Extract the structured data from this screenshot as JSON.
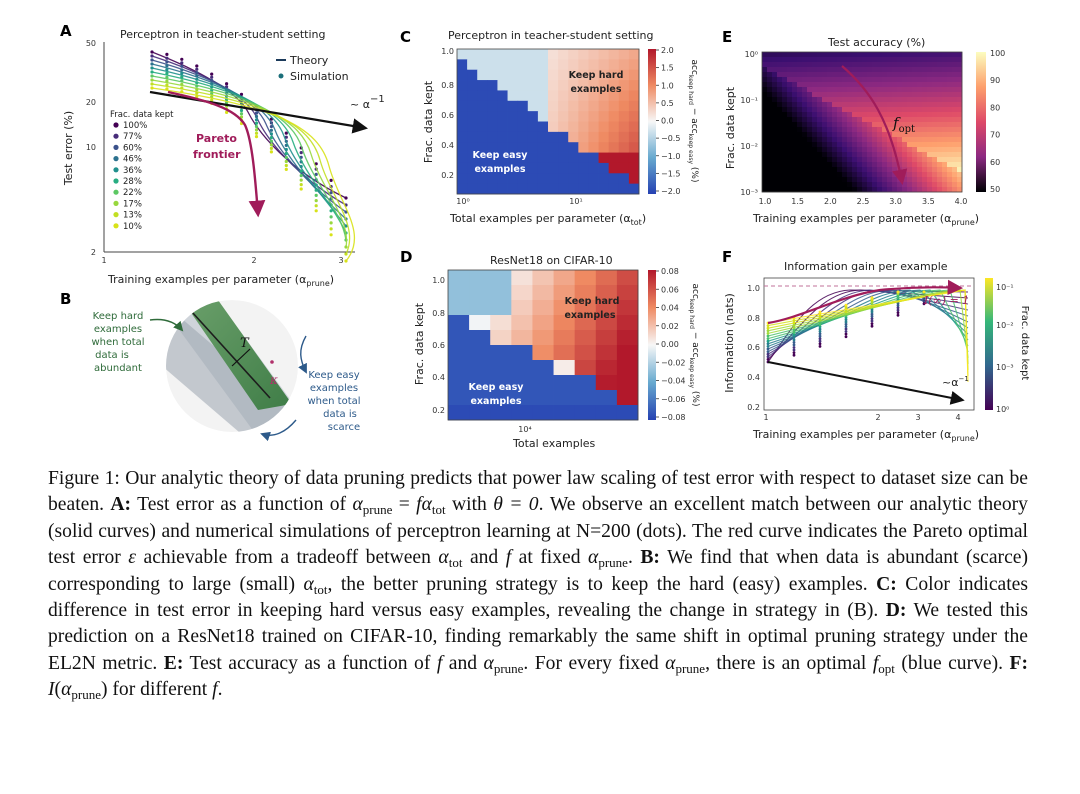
{
  "panels": {
    "A": {
      "letter": "A",
      "title": "Perceptron in teacher-student setting",
      "xlabel": "Training examples per parameter (α",
      "xlabel_sub": "prune",
      "ylabel": "Test error (%)",
      "legend": {
        "theory": "Theory",
        "simulation": "Simulation"
      },
      "frac_title": "Frac. data kept",
      "fracs": [
        "100%",
        "77%",
        "60%",
        "46%",
        "36%",
        "28%",
        "22%",
        "17%",
        "13%",
        "10%"
      ],
      "frac_colors": [
        "#440154",
        "#472c7a",
        "#3b518b",
        "#2c718e",
        "#21908d",
        "#27ad81",
        "#5cc863",
        "#98d83e",
        "#c2df23",
        "#d8e219"
      ],
      "pareto_label_1": "Pareto",
      "pareto_label_2": "frontier",
      "power_label": "~ α",
      "power_exp": "−1",
      "yticks": [
        "50",
        "20",
        "10",
        "2"
      ],
      "xticks": [
        "1",
        "2",
        "3"
      ]
    },
    "B": {
      "letter": "B",
      "hard_lines": [
        "Keep hard",
        "examples",
        "when total",
        "data is",
        "abundant"
      ],
      "easy_lines": [
        "Keep easy",
        "examples",
        "when total",
        "data is",
        "scarce"
      ],
      "T_label": "T",
      "kappa_label": "κ"
    },
    "C": {
      "letter": "C",
      "title": "Perceptron in teacher-student setting",
      "xlabel": "Total examples per parameter (α",
      "xlabel_sub": "tot",
      "ylabel": "Frac. data kept",
      "yticks": [
        "1.0",
        "0.8",
        "0.6",
        "0.4",
        "0.2"
      ],
      "xticks": [
        "10⁰",
        "10¹"
      ],
      "cbar_ticks": [
        "2.0",
        "1.5",
        "1.0",
        "0.5",
        "0.0",
        "−0.5",
        "−1.0",
        "−1.5",
        "−2.0"
      ],
      "cbar_label": "acc",
      "cbar_label_a": "keep hard",
      "cbar_label_b": " − acc",
      "cbar_label_c": "keep easy",
      "cbar_label_d": " (%)",
      "hard_lines": [
        "Keep hard",
        "examples"
      ],
      "easy_lines": [
        "Keep easy",
        "examples"
      ]
    },
    "D": {
      "letter": "D",
      "title": "ResNet18 on CIFAR-10",
      "xlabel": "Total examples",
      "ylabel": "Frac. data kept",
      "yticks": [
        "1.0",
        "0.8",
        "0.6",
        "0.4",
        "0.2"
      ],
      "xticks": [
        "10⁴"
      ],
      "cbar_ticks": [
        "0.08",
        "0.06",
        "0.04",
        "0.02",
        "0.00",
        "−0.02",
        "−0.04",
        "−0.06",
        "−0.08"
      ],
      "cbar_label": "acc",
      "cbar_label_a": "keep hard",
      "cbar_label_b": " − acc",
      "cbar_label_c": "keep easy",
      "cbar_label_d": " (%)",
      "hard_lines": [
        "Keep hard",
        "examples"
      ],
      "easy_lines": [
        "Keep easy",
        "examples"
      ]
    },
    "E": {
      "letter": "E",
      "title": "Test accuracy (%)",
      "xlabel": "Training examples per parameter (α",
      "xlabel_sub": "prune",
      "ylabel": "Frac. data kept",
      "yticks": [
        "10⁰",
        "10⁻¹",
        "10⁻²",
        "10⁻³"
      ],
      "xticks": [
        "1.0",
        "1.5",
        "2.0",
        "2.5",
        "3.0",
        "3.5",
        "4.0"
      ],
      "cbar_ticks": [
        "100",
        "90",
        "80",
        "70",
        "60",
        "50"
      ],
      "fopt_label": "f",
      "fopt_sub": "opt"
    },
    "F": {
      "letter": "F",
      "title": "Information gain per example",
      "xlabel": "Training examples per parameter (α",
      "xlabel_sub": "prune",
      "ylabel": "Information (nats)",
      "yticks": [
        "1.0",
        "0.8",
        "0.6",
        "0.4",
        "0.2"
      ],
      "xticks": [
        "1",
        "2",
        "3",
        "4"
      ],
      "cbar_ticks": [
        "10⁻¹",
        "10⁻²",
        "10⁻³",
        "10⁰"
      ],
      "cbar_label": "Frac. data kept",
      "info_label": "I(∞) = 1",
      "power_label": "~α",
      "power_exp": "−1"
    }
  },
  "caption": {
    "figure_label": "Figure 1:",
    "intro": "Our analytic theory of data pruning predicts that power law scaling of test error with respect to dataset size can be beaten.",
    "A_label": "A:",
    "A_text_1": "Test error as a function of",
    "A_eq": "α",
    "A_eq_sub": "prune",
    "A_eq_mid": " = ",
    "A_f": "f",
    "A_eq_alpha": "α",
    "A_eq_sub2": "tot",
    "A_text_2": " with ",
    "A_theta": "θ = 0",
    "A_text_3": ". We observe an excellent match between our analytic theory (solid curves) and numerical simulations of perceptron learning at N=200 (dots). The red curve indicates the Pareto optimal test error",
    "A_eps": "ε",
    "A_text_4": "achievable from a tradeoff between",
    "A_tot": "α",
    "A_tot_sub": "tot",
    "A_text_5": " and ",
    "A_text_6": " at fixed ",
    "A_prune": "α",
    "A_prune_sub": "prune",
    "B_label": "B:",
    "B_text": "We find that when data is abundant (scarce) corresponding to large (small)",
    "B_tot": "α",
    "B_tot_sub": "tot",
    "B_text_2": ", the better pruning strategy is to keep the hard (easy) examples.",
    "C_label": "C:",
    "C_text": "Color indicates difference in test error in keeping hard versus easy examples, revealing the change in strategy in (B).",
    "D_label": "D:",
    "D_text": "We tested this prediction on a ResNet18 trained on CIFAR-10, finding remarkably the same shift in optimal pruning strategy under the EL2N metric.",
    "E_label": "E:",
    "E_text_1": "Test accuracy as a function of",
    "E_text_2": " and ",
    "E_prune": "α",
    "E_prune_sub": "prune",
    "E_text_3": ". For every fixed ",
    "E_text_4": ", there is an optimal ",
    "E_fopt": "f",
    "E_fopt_sub": "opt",
    "E_text_5": " (blue curve).",
    "F_label": "F:",
    "F_I": "I",
    "F_open": "(",
    "F_close": ")",
    "F_text": " for different "
  }
}
